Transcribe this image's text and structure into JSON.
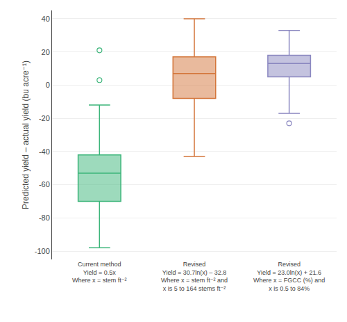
{
  "chart_data": {
    "type": "box",
    "categories": [
      "Current method\nYield = 0.5x\nWhere x = stem ft⁻²",
      "Revised\nYield = 30.7ln(x) – 32.8\nWhere x = stem ft⁻² and\nx is 5 to 164 stems ft⁻²",
      "Revised\nYield = 23.0ln(x) + 21.6\nWhere x = FGCC (%) and\nx is 0.5 to 84%"
    ],
    "boxes": [
      {
        "color": "#3cb57a",
        "lower_whisker": -98,
        "q1": -70,
        "median": -53,
        "q3": -42,
        "upper_whisker": -12,
        "fliers": [
          21,
          3
        ]
      },
      {
        "color": "#d4763b",
        "lower_whisker": -43,
        "q1": -8,
        "median": 7,
        "q3": 17,
        "upper_whisker": 40,
        "fliers": []
      },
      {
        "color": "#8a87c0",
        "lower_whisker": -17,
        "q1": 5,
        "median": 13,
        "q3": 18,
        "upper_whisker": 33,
        "fliers": [
          -23
        ]
      }
    ],
    "y_label": "Predicted yield – actual yield (bu acre⁻¹)",
    "ylim": [
      -105,
      45
    ],
    "yticks": [
      -100,
      -80,
      -60,
      -40,
      -20,
      0,
      20,
      40
    ],
    "grid": true
  }
}
